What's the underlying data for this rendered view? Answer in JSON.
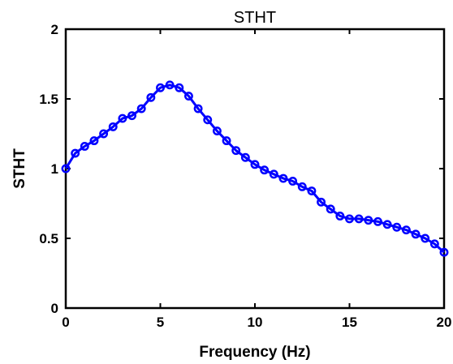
{
  "chart_data": {
    "type": "line",
    "title": "STHT",
    "xlabel": "Frequency (Hz)",
    "ylabel": "STHT",
    "xlim": [
      0,
      20
    ],
    "ylim": [
      0,
      2
    ],
    "xticks": [
      0,
      5,
      10,
      15,
      20
    ],
    "xtick_labels": [
      "0",
      "5",
      "10",
      "15",
      "20"
    ],
    "yticks": [
      0,
      0.5,
      1,
      1.5,
      2
    ],
    "ytick_labels": [
      "0",
      "0.5",
      "1",
      "1.5",
      "2"
    ],
    "grid": false,
    "legend": "none",
    "series": [
      {
        "color": "#0000ff",
        "marker": "circle",
        "x": [
          0,
          0.5,
          1,
          1.5,
          2,
          2.5,
          3,
          3.5,
          4,
          4.5,
          5,
          5.5,
          6,
          6.5,
          7,
          7.5,
          8,
          8.5,
          9,
          9.5,
          10,
          10.5,
          11,
          11.5,
          12,
          12.5,
          13,
          13.5,
          14,
          14.5,
          15,
          15.5,
          16,
          16.5,
          17,
          17.5,
          18,
          18.5,
          19,
          19.5,
          20
        ],
        "y": [
          1.0,
          1.11,
          1.16,
          1.2,
          1.25,
          1.3,
          1.36,
          1.38,
          1.43,
          1.51,
          1.58,
          1.6,
          1.58,
          1.52,
          1.43,
          1.35,
          1.27,
          1.2,
          1.13,
          1.08,
          1.03,
          0.99,
          0.96,
          0.93,
          0.91,
          0.87,
          0.84,
          0.76,
          0.71,
          0.66,
          0.64,
          0.64,
          0.63,
          0.62,
          0.6,
          0.58,
          0.56,
          0.53,
          0.5,
          0.46,
          0.4
        ]
      }
    ]
  }
}
